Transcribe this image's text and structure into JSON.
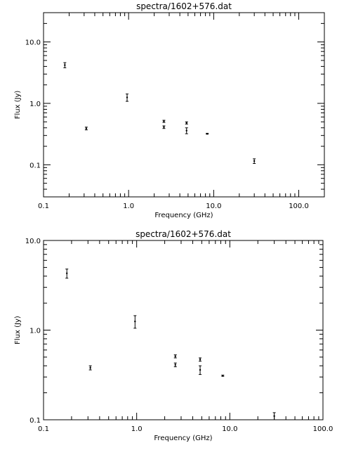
{
  "chart_data": [
    {
      "type": "scatter",
      "title": "spectra/1602+576.dat",
      "xlabel": "Frequency (GHz)",
      "ylabel": "Flux (Jy)",
      "xscale": "log",
      "yscale": "log",
      "xlim": [
        0.1,
        200
      ],
      "ylim": [
        0.03,
        30
      ],
      "grid": false,
      "legend": "none",
      "xticklabels": [
        "0.1",
        "1.0",
        "10.0",
        "100.0"
      ],
      "yticklabels": [
        "0.1",
        "1.0",
        "10.0"
      ],
      "series": [
        {
          "points": [
            {
              "x": 0.178,
              "y": 4.2,
              "ylo": 3.8,
              "yhi": 4.6
            },
            {
              "x": 0.318,
              "y": 0.39,
              "ylo": 0.37,
              "yhi": 0.41
            },
            {
              "x": 0.96,
              "y": 1.25,
              "ylo": 1.08,
              "yhi": 1.42
            },
            {
              "x": 2.6,
              "y": 0.51,
              "ylo": 0.49,
              "yhi": 0.53
            },
            {
              "x": 2.6,
              "y": 0.41,
              "ylo": 0.39,
              "yhi": 0.43
            },
            {
              "x": 4.8,
              "y": 0.48,
              "ylo": 0.46,
              "yhi": 0.5
            },
            {
              "x": 4.8,
              "y": 0.36,
              "ylo": 0.32,
              "yhi": 0.4
            },
            {
              "x": 8.4,
              "y": 0.32,
              "ylo": 0.315,
              "yhi": 0.325
            },
            {
              "x": 30.0,
              "y": 0.115,
              "ylo": 0.105,
              "yhi": 0.125
            }
          ]
        }
      ]
    },
    {
      "type": "scatter",
      "title": "spectra/1602+576.dat",
      "xlabel": "Frequency (GHz)",
      "ylabel": "Flux (Jy)",
      "xscale": "log",
      "yscale": "log",
      "xlim": [
        0.1,
        100
      ],
      "ylim": [
        0.1,
        10
      ],
      "grid": false,
      "legend": "none",
      "xticklabels": [
        "0.1",
        "1.0",
        "10.0",
        "100.0"
      ],
      "yticklabels": [
        "0.1",
        "1.0",
        "10.0"
      ],
      "series": [
        {
          "points": [
            {
              "x": 0.178,
              "y": 4.3,
              "ylo": 3.8,
              "yhi": 4.8
            },
            {
              "x": 0.318,
              "y": 0.38,
              "ylo": 0.36,
              "yhi": 0.4
            },
            {
              "x": 0.96,
              "y": 1.25,
              "ylo": 1.05,
              "yhi": 1.45
            },
            {
              "x": 2.6,
              "y": 0.51,
              "ylo": 0.49,
              "yhi": 0.53
            },
            {
              "x": 2.6,
              "y": 0.41,
              "ylo": 0.39,
              "yhi": 0.43
            },
            {
              "x": 4.8,
              "y": 0.47,
              "ylo": 0.45,
              "yhi": 0.49
            },
            {
              "x": 4.8,
              "y": 0.36,
              "ylo": 0.32,
              "yhi": 0.4
            },
            {
              "x": 8.4,
              "y": 0.31,
              "ylo": 0.305,
              "yhi": 0.315
            },
            {
              "x": 30.0,
              "y": 0.11,
              "ylo": 0.1,
              "yhi": 0.12
            }
          ]
        }
      ]
    }
  ]
}
